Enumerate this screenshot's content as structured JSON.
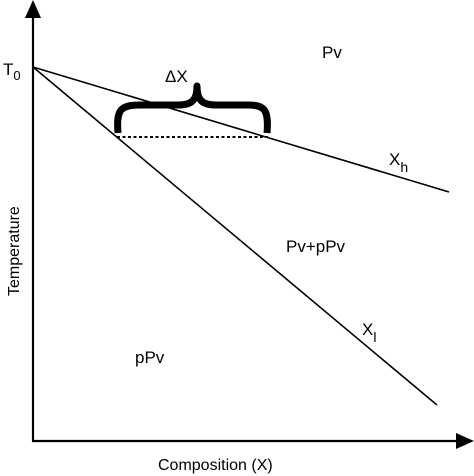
{
  "diagram": {
    "x_axis_label": "Composition (X)",
    "y_axis_label": "Temperature",
    "origin_label": {
      "base": "T",
      "subscript": "0"
    },
    "regions": {
      "upper": "Pv",
      "middle": "Pv+pPv",
      "lower": "pPv"
    },
    "curves": {
      "upper": {
        "base": "X",
        "subscript": "h"
      },
      "lower": {
        "base": "X",
        "subscript": "l"
      }
    },
    "gap": {
      "label": "ΔX",
      "brace": "{"
    },
    "colors": {
      "lines": "#000000",
      "background": "#ffffff"
    }
  }
}
